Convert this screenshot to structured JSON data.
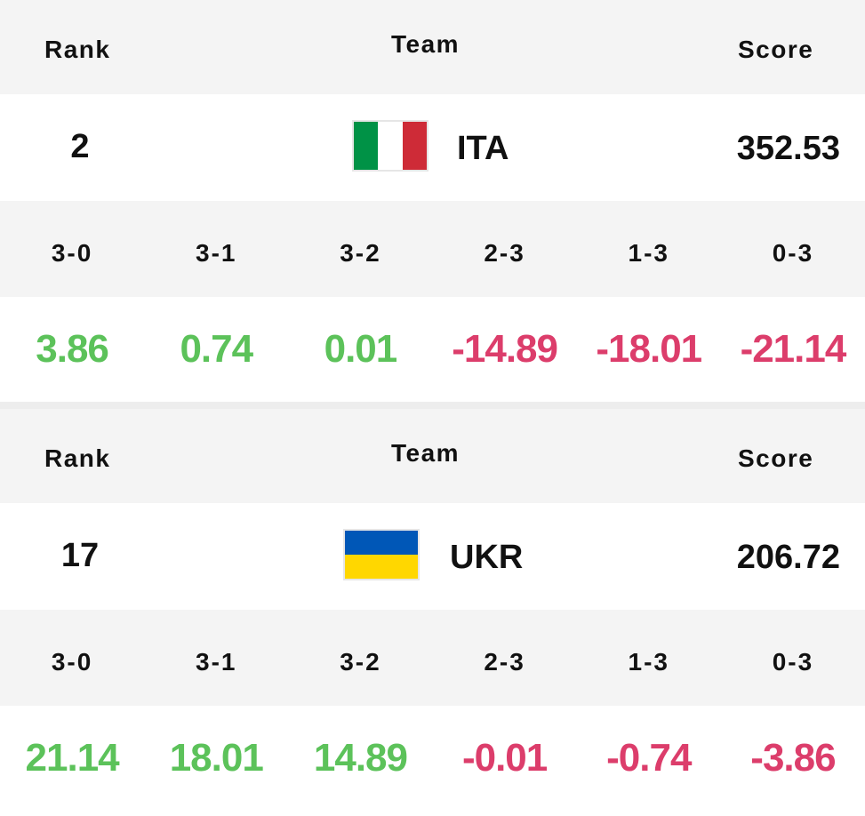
{
  "headers": {
    "rank": "Rank",
    "team": "Team",
    "score": "Score"
  },
  "outcomes": [
    "3-0",
    "3-1",
    "3-2",
    "2-3",
    "1-3",
    "0-3"
  ],
  "colors": {
    "positive": "#5cc25a",
    "negative": "#dc3d6b"
  },
  "teams": [
    {
      "rank": "2",
      "code": "ITA",
      "flag": {
        "stripes": "vertical",
        "colors": [
          "#009246",
          "#ffffff",
          "#ce2b37"
        ]
      },
      "score": "352.53",
      "changes": [
        "3.86",
        "0.74",
        "0.01",
        "-14.89",
        "-18.01",
        "-21.14"
      ]
    },
    {
      "rank": "17",
      "code": "UKR",
      "flag": {
        "stripes": "horizontal",
        "colors": [
          "#0057b7",
          "#ffd700"
        ]
      },
      "score": "206.72",
      "changes": [
        "21.14",
        "18.01",
        "14.89",
        "-0.01",
        "-0.74",
        "-3.86"
      ]
    }
  ]
}
